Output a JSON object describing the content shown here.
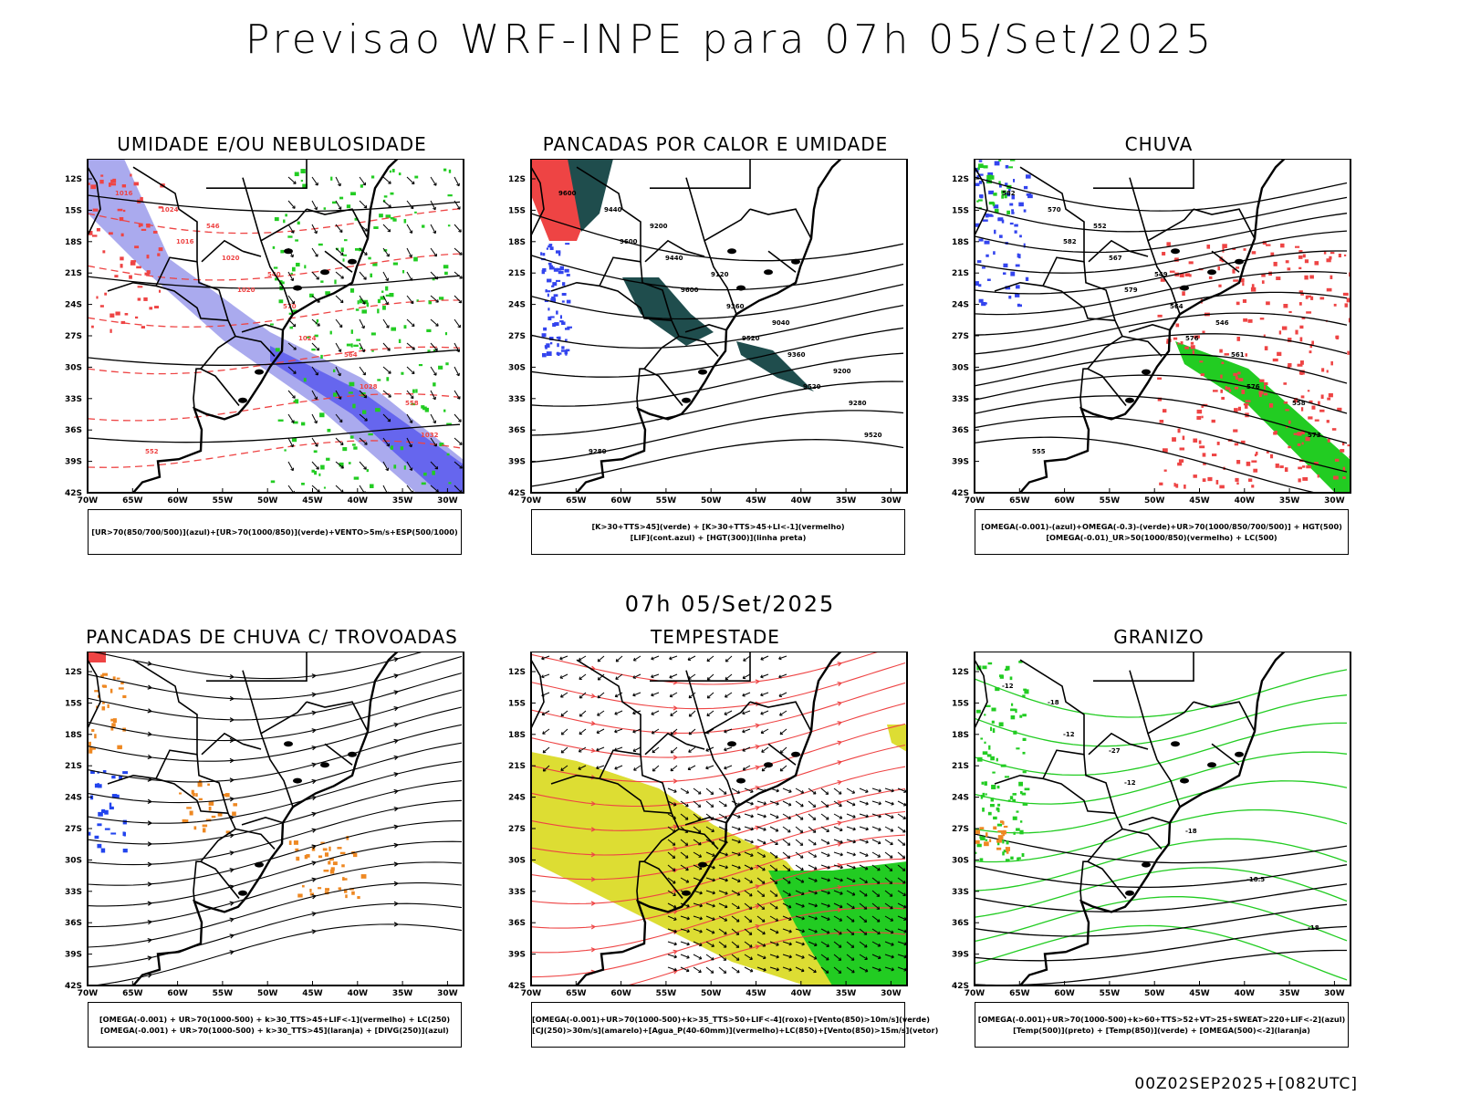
{
  "main_title": "Previsao WRF-INPE  para 07h 05/Set/2025",
  "middle_title": "07h 05/Set/2025",
  "footer": "00Z02SEP2025+[082UTC]",
  "axes": {
    "lat_labels": [
      "12S",
      "15S",
      "18S",
      "21S",
      "24S",
      "27S",
      "30S",
      "33S",
      "36S",
      "39S",
      "42S"
    ],
    "lon_labels": [
      "70W",
      "65W",
      "60W",
      "55W",
      "50W",
      "45W",
      "40W",
      "35W",
      "30W"
    ]
  },
  "colors": {
    "humid_blue": "#6666ee",
    "light_blue": "#aaaaee",
    "green": "#22cc22",
    "red": "#ee4444",
    "orange": "#ee8822",
    "dark_teal": "#1f4d4d",
    "yellow": "#dddd33"
  },
  "panels": [
    {
      "title": "UMIDADE E/OU NEBULOSIDADE",
      "legend": [
        "[UR>70(850/700/500)](azul)+[UR>70(1000/850)](verde)+VENTO>5m/s+ESP(500/1000)"
      ],
      "contour_labels": [
        "1016",
        "1016",
        "1020",
        "1024",
        "1028",
        "1032",
        "1024",
        "1020",
        "570",
        "564",
        "558",
        "552",
        "546",
        "540"
      ]
    },
    {
      "title": "PANCADAS POR CALOR E UMIDADE",
      "legend": [
        "[K>30+TTS>45](verde) + [K>30+TTS>45+LI<-1](vermelho)",
        "[LIF](cont.azul) + [HGT(300)](linha preta)"
      ],
      "contour_labels": [
        "9600",
        "9600",
        "9600",
        "9520",
        "9520",
        "9520",
        "9440",
        "9440",
        "9360",
        "9360",
        "9280",
        "9280",
        "9200",
        "9120",
        "9040",
        "9200"
      ]
    },
    {
      "title": "CHUVA",
      "legend": [
        "[OMEGA(-0.001)-(azul)+OMEGA(-0.3)-(verde)+UR>70(1000/850/700/500)] + HGT(500)",
        "[OMEGA(-0.01)_UR>50(1000/850)(vermelho) + LC(500)"
      ],
      "contour_labels": [
        "582",
        "582",
        "579",
        "576",
        "576",
        "573",
        "570",
        "567",
        "564",
        "561",
        "558",
        "555",
        "552",
        "549",
        "546"
      ]
    },
    {
      "title": "PANCADAS DE CHUVA C/ TROVOADAS",
      "legend": [
        "[OMEGA(-0.001) + UR>70(1000-500) + k>30_TTS>45+LIF<-1](vermelho) + LC(250)",
        "[OMEGA(-0.001) + UR>70(1000-500) + k>30_TTS>45](laranja) + [DIVG(250)](azul)"
      ],
      "contour_labels": []
    },
    {
      "title": "TEMPESTADE",
      "legend": [
        "[OMEGA(-0.001)+UR>70(1000-500)+k>35_TTS>50+LIF<-4](roxo)+[Vento(850)>10m/s](verde)",
        "[CJ(250)>30m/s](amarelo)+[Agua_P(40-60mm)](vermelho)+LC(850)+[Vento(850)>15m/s](vetor)"
      ],
      "contour_labels": []
    },
    {
      "title": "GRANIZO",
      "legend": [
        "[OMEGA(-0.001)+UR>70(1000-500)+k>60+TTS>52+VT>25+SWEAT>220+LIF<-2](azul)",
        "[Temp(500)](preto) + [Temp(850)](verde) + [OMEGA(500)<-2](laranja)"
      ],
      "contour_labels": [
        "-12",
        "-12",
        "-12",
        "-18",
        "-18.5",
        "-18",
        "-18",
        "-27"
      ]
    }
  ]
}
